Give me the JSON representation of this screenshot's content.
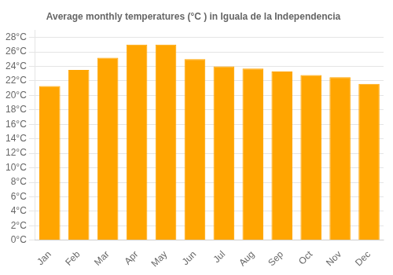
{
  "chart_data": {
    "type": "bar",
    "title": "Average monthly temperatures (°C ) in Iguala de la Independencia",
    "categories": [
      "Jan",
      "Feb",
      "Mar",
      "Apr",
      "May",
      "Jun",
      "Jul",
      "Aug",
      "Sep",
      "Oct",
      "Nov",
      "Dec"
    ],
    "values": [
      21.3,
      23.5,
      25.2,
      27.0,
      27.0,
      25.0,
      24.0,
      23.7,
      23.3,
      22.8,
      22.5,
      21.6
    ],
    "color": "#FFA500",
    "ylim": [
      0,
      29
    ],
    "yticks": [
      {
        "value": 0,
        "label": "0°C"
      },
      {
        "value": 2,
        "label": "2°C"
      },
      {
        "value": 4,
        "label": "4°C"
      },
      {
        "value": 6,
        "label": "6°C"
      },
      {
        "value": 8,
        "label": "8°C"
      },
      {
        "value": 10,
        "label": "10°C"
      },
      {
        "value": 12,
        "label": "12°C"
      },
      {
        "value": 14,
        "label": "14°C"
      },
      {
        "value": 16,
        "label": "16°C"
      },
      {
        "value": 18,
        "label": "18°C"
      },
      {
        "value": 20,
        "label": "20°C"
      },
      {
        "value": 22,
        "label": "22°C"
      },
      {
        "value": 24,
        "label": "24°C"
      },
      {
        "value": 26,
        "label": "26°C"
      },
      {
        "value": 28,
        "label": "28°C"
      }
    ],
    "grid": true
  }
}
